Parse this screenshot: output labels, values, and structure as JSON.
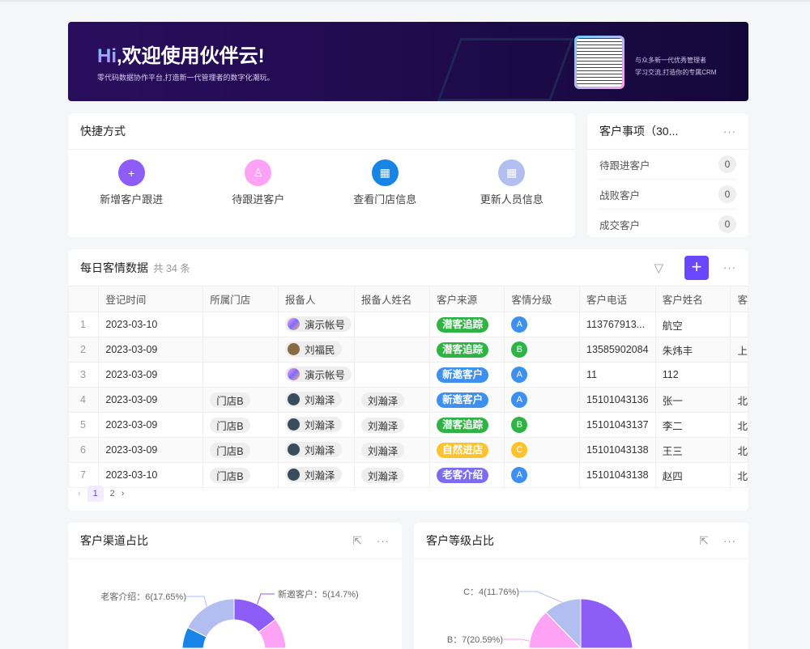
{
  "banner": {
    "greeting_hi": "Hi",
    "greeting_rest": ",欢迎使用伙伴云!",
    "subtitle": "零代码数据协作平台,打造新一代管理者的数字化潮玩。",
    "qr_text_1": "与众多新一代优秀管理者",
    "qr_text_2": "学习交流,打造你的专属CRM"
  },
  "shortcuts": {
    "title": "快捷方式",
    "items": [
      {
        "label": "新增客户跟进",
        "icon": "add-user-icon",
        "color": "#8e5cf7"
      },
      {
        "label": "待跟进客户",
        "icon": "user-icon",
        "color": "#fda2f5"
      },
      {
        "label": "查看门店信息",
        "icon": "building-icon",
        "color": "#1685e6"
      },
      {
        "label": "更新人员信息",
        "icon": "grid-icon",
        "color": "#b3bef0"
      }
    ]
  },
  "matters": {
    "title": "客户事项（30...",
    "items": [
      {
        "label": "待跟进客户",
        "count": "0"
      },
      {
        "label": "战败客户",
        "count": "0"
      },
      {
        "label": "成交客户",
        "count": "0"
      }
    ]
  },
  "table": {
    "title": "每日客情数据",
    "count": "共 34 条",
    "columns": [
      "",
      "登记时间",
      "所属门店",
      "报备人",
      "报备人姓名",
      "客户来源",
      "客情分级",
      "客户电话",
      "客户姓名",
      "客"
    ],
    "rows": [
      {
        "i": "1",
        "date": "2023-03-10",
        "store": "",
        "reporter": "演示帐号",
        "rname": "",
        "source": "潜客追踪",
        "level": "A",
        "phone": "113767913...",
        "name": "航空",
        "extra": ""
      },
      {
        "i": "2",
        "date": "2023-03-09",
        "store": "",
        "reporter": "刘福民",
        "rname": "",
        "source": "潜客追踪",
        "level": "B",
        "phone": "13585902084",
        "name": "朱炜丰",
        "extra": "上"
      },
      {
        "i": "3",
        "date": "2023-03-09",
        "store": "",
        "reporter": "演示帐号",
        "rname": "",
        "source": "新邀客户",
        "level": "A",
        "phone": "11",
        "name": "112",
        "extra": ""
      },
      {
        "i": "4",
        "date": "2023-03-09",
        "store": "门店B",
        "reporter": "刘瀚泽",
        "rname": "刘瀚泽",
        "source": "新邀客户",
        "level": "A",
        "phone": "15101043136",
        "name": "张一",
        "extra": "北"
      },
      {
        "i": "5",
        "date": "2023-03-09",
        "store": "门店B",
        "reporter": "刘瀚泽",
        "rname": "刘瀚泽",
        "source": "潜客追踪",
        "level": "B",
        "phone": "15101043137",
        "name": "李二",
        "extra": "北"
      },
      {
        "i": "6",
        "date": "2023-03-09",
        "store": "门店B",
        "reporter": "刘瀚泽",
        "rname": "刘瀚泽",
        "source": "自然进店",
        "level": "C",
        "phone": "15101043138",
        "name": "王三",
        "extra": "北"
      },
      {
        "i": "7",
        "date": "2023-03-10",
        "store": "门店B",
        "reporter": "刘瀚泽",
        "rname": "刘瀚泽",
        "source": "老客介绍",
        "level": "A",
        "phone": "15101043138",
        "name": "赵四",
        "extra": "北"
      }
    ],
    "source_colors": {
      "潜客追踪": "#2fb344",
      "新邀客户": "#3d8ff0",
      "自然进店": "#fcc42a",
      "老客介绍": "#7b6cf2"
    },
    "level_colors": {
      "A": "#3d8ff0",
      "B": "#2fb344",
      "C": "#fcc42a"
    },
    "pages": [
      "1",
      "2"
    ],
    "current_page": "1"
  },
  "chart_data": [
    {
      "type": "pie",
      "donut": true,
      "title": "客户渠道占比",
      "slices": [
        {
          "name": "新邀客户",
          "value": 5,
          "percent": "14.7%",
          "label": "新邀客户：5(14.7%)",
          "color": "#8e5cf7"
        },
        {
          "name": "",
          "value": 13,
          "color": "#fda2f5"
        },
        {
          "name": "",
          "value": 10,
          "color": "#1685e6"
        },
        {
          "name": "老客介绍",
          "value": 6,
          "percent": "17.65%",
          "label": "老客介绍：6(17.65%)",
          "color": "#b3bef0"
        }
      ]
    },
    {
      "type": "pie",
      "donut": false,
      "title": "客户等级占比",
      "slices": [
        {
          "name": "",
          "value": 23,
          "color": "#8e5cf7"
        },
        {
          "name": "B",
          "value": 7,
          "percent": "20.59%",
          "label": "B：7(20.59%)",
          "color": "#fda2f5"
        },
        {
          "name": "C",
          "value": 4,
          "percent": "11.76%",
          "label": "C：4(11.76%)",
          "color": "#b3bef0"
        }
      ]
    }
  ]
}
